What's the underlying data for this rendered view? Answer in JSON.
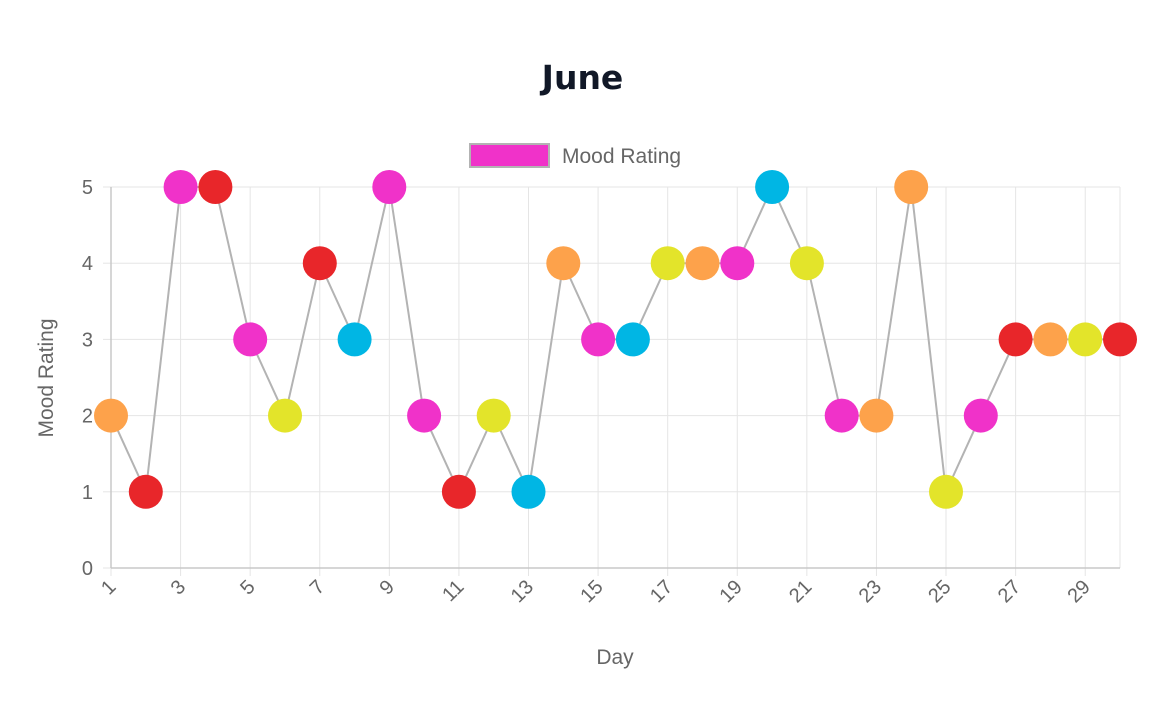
{
  "chart_data": {
    "type": "line",
    "title": "June",
    "xlabel": "Day",
    "ylabel": "Mood Rating",
    "ylim": [
      0,
      5
    ],
    "yticks": [
      "0",
      "1",
      "2",
      "3",
      "4",
      "5"
    ],
    "xtick_labels": [
      "1",
      "3",
      "5",
      "7",
      "9",
      "11",
      "13",
      "15",
      "17",
      "19",
      "21",
      "23",
      "25",
      "27",
      "29"
    ],
    "grid": true,
    "legend_position": "top",
    "line_color": "#b3b3b3",
    "rating_colors": {
      "1": "#e8262a",
      "2": "#fda24b",
      "3": "#f032c9",
      "4": "#e3e42a",
      "5": "#00b6e4"
    },
    "series": [
      {
        "name": "Mood Rating",
        "legend_color": "#f032c9",
        "x": [
          1,
          2,
          3,
          4,
          5,
          6,
          7,
          8,
          9,
          10,
          11,
          12,
          13,
          14,
          15,
          16,
          17,
          18,
          19,
          20,
          21,
          22,
          23,
          24,
          25,
          26,
          27,
          28,
          29,
          30
        ],
        "values": [
          2,
          1,
          5,
          5,
          3,
          2,
          4,
          3,
          5,
          2,
          1,
          2,
          1,
          4,
          3,
          3,
          4,
          4,
          4,
          5,
          4,
          2,
          2,
          5,
          1,
          2,
          3,
          3,
          3,
          3
        ],
        "point_colors": [
          "#fda24b",
          "#e8262a",
          "#f032c9",
          "#e8262a",
          "#f032c9",
          "#e3e42a",
          "#e8262a",
          "#00b6e4",
          "#f032c9",
          "#f032c9",
          "#e8262a",
          "#e3e42a",
          "#00b6e4",
          "#fda24b",
          "#f032c9",
          "#00b6e4",
          "#e3e42a",
          "#fda24b",
          "#f032c9",
          "#00b6e4",
          "#e3e42a",
          "#f032c9",
          "#fda24b",
          "#fda24b",
          "#e3e42a",
          "#f032c9",
          "#e8262a",
          "#fda24b",
          "#e3e42a",
          "#e8262a"
        ]
      }
    ]
  }
}
